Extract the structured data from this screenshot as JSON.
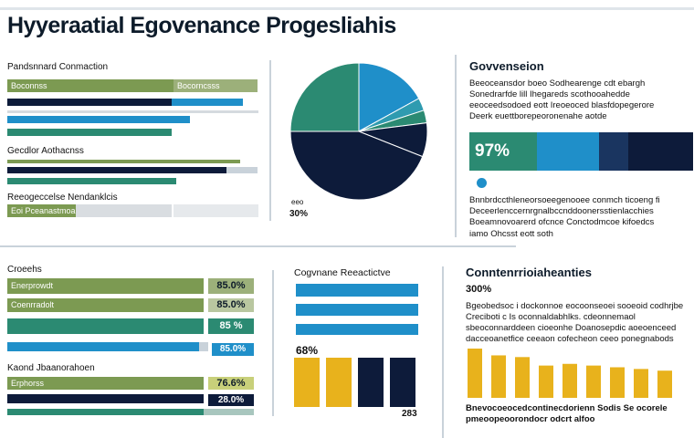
{
  "title": "Hyyeraatial Egovenance Progesliahis",
  "colors": {
    "green": "#2b8a72",
    "olive": "#7c9a52",
    "navy": "#0d1b3a",
    "blue": "#1f8fc9",
    "teal": "#2f9bb0",
    "gold": "#e8b21c",
    "rule": "#c9d2da"
  },
  "top_left": {
    "header": "Pandsnnard Conmaction",
    "bar1_label": "Boconnss",
    "bar1_right_label": "Bocorncsss",
    "group2_label": "Gecdlor Aothacnss",
    "group3_label": "Reeogeccelse Nendanklcis",
    "bar3_label": "Eoi Pceanastmoa"
  },
  "pie": {
    "label_small": "eeo",
    "label_value": "30%"
  },
  "right_panel": {
    "heading": "Govvenseion",
    "paragraph1": "Beeoceansdor boeo Sodhearenge cdt ebargh Sonedrarfde lill Ihegareds scothooahedde eeoceedsodoed eott Ireoeoced blasfdopegerore Deerk euettborepeoronenahe aotde",
    "stat": "97%",
    "paragraph2": "Bnnbrdccthleneorsoeegenooee conmch ticoeng fi Deceerlenccernrgnalbccnddoonersstienlacchies Boeamnovoarerd ofcnce Conctodmcoe kifoedcs",
    "footnote": "iamo Ohcsst eott soth"
  },
  "bottom_left": {
    "header": "Croeehs",
    "rows": [
      {
        "label": "Enerprowdt",
        "value": "85.0%"
      },
      {
        "label": "Coenrradolt",
        "value": "85.0%"
      },
      {
        "label": "",
        "value": "85 %"
      },
      {
        "label": "",
        "value": "85.0%"
      }
    ],
    "group2_label": "Kaond Jbaanorahoen",
    "rows2": [
      {
        "label": "Erphorss",
        "value": "76.6%"
      },
      {
        "label": "",
        "value": "28.0%"
      }
    ]
  },
  "bottom_mid": {
    "heading": "Cogvnane Reeactictve",
    "value_label": "68%",
    "bottom_value": "283"
  },
  "bottom_right": {
    "heading": "Conntenrrioiaheanties",
    "subheading": "300%",
    "paragraph": "Bgeobedsoc i dockonnoe eocoonseoei sooeoid codhrjbe Creciboti c Is oconnaldabhlks. cdeonnemaol sbeoconnarddeen cioeonhe Doanosepdic aoeoenceed dacceoanetfice ceeaon cofecheon ceeo ponegnabods",
    "footer": "Bnevocoeocedcontinecdorienn Sodis Se ocorele pmeoopeoorondocr odcrt alfoo"
  },
  "chart_data": [
    {
      "type": "bar",
      "title": "Pandsnnard Conmaction",
      "orientation": "horizontal",
      "series": [
        {
          "values": [
            0.74,
            0.58,
            0.64
          ]
        },
        {
          "values": [
            0.92,
            0.74
          ]
        },
        {
          "values": [
            0.64
          ]
        }
      ]
    },
    {
      "type": "pie",
      "values": [
        17,
        3,
        3,
        8,
        44,
        25
      ],
      "colors": [
        "#1f8fc9",
        "#2f9bb0",
        "#2b8a72",
        "#0d1b3a",
        "#0d1b3a",
        "#2b8a72"
      ]
    },
    {
      "type": "bar",
      "orientation": "horizontal",
      "title": "Croeehs",
      "values": [
        85.0,
        85.0,
        85,
        85.0,
        76.6,
        28.0
      ]
    },
    {
      "type": "bar",
      "title": "Cogvnane Reeactictve",
      "values": [
        68,
        68,
        68,
        68
      ]
    },
    {
      "type": "bar",
      "title": "Conntenrrioiaheanties",
      "values": [
        58,
        50,
        48,
        38,
        40,
        38,
        36,
        34,
        32
      ]
    }
  ]
}
